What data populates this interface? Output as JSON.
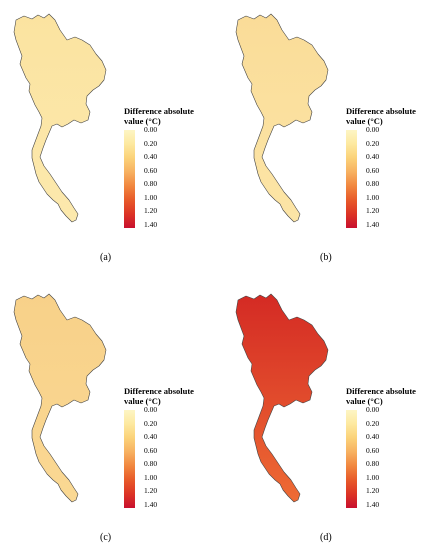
{
  "panels": [
    {
      "label": "(a)",
      "letter": "a",
      "fill": "#fbe6a5",
      "fill_north": "#fbe3a0",
      "fill_south": "#fce9ad"
    },
    {
      "label": "(b)",
      "letter": "b",
      "fill": "#fbe1a0",
      "fill_north": "#fadc98",
      "fill_south": "#fce5a6"
    },
    {
      "label": "(c)",
      "letter": "c",
      "fill": "#f9d68e",
      "fill_north": "#f8d189",
      "fill_south": "#fad893"
    },
    {
      "label": "(d)",
      "letter": "d",
      "fill": "#e9432a",
      "fill_north": "#d42a24",
      "fill_south": "#ee6b34"
    }
  ],
  "legend": {
    "title_line1": "Difference absolute",
    "title_line2": "value (°C)",
    "ticks": [
      "0.00",
      "0.20",
      "0.40",
      "0.60",
      "0.80",
      "1.00",
      "1.20",
      "1.40"
    ]
  }
}
